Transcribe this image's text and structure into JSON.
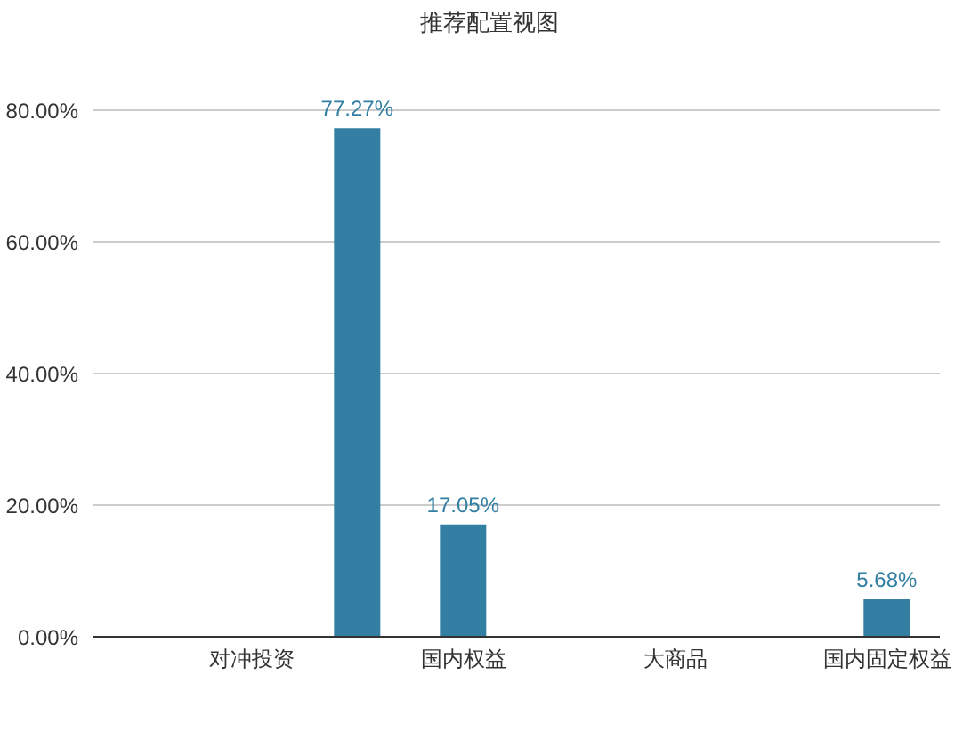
{
  "chart_data": {
    "type": "bar",
    "title": "推荐配置视图",
    "categories": [
      null,
      "对冲投资",
      null,
      "国内权益",
      null,
      "大商品",
      null,
      "国内固定权益"
    ],
    "values": [
      null,
      null,
      77.27,
      17.05,
      null,
      null,
      null,
      5.68
    ],
    "value_labels": [
      null,
      null,
      "77.27%",
      "17.05%",
      null,
      null,
      null,
      "5.68%"
    ],
    "color": "#337fa3",
    "ylim": [
      0,
      80
    ],
    "yticks": [
      {
        "value": 0,
        "label": "0.00%"
      },
      {
        "value": 20,
        "label": "20.00%"
      },
      {
        "value": 40,
        "label": "40.00%"
      },
      {
        "value": 60,
        "label": "60.00%"
      },
      {
        "value": 80,
        "label": "80.00%"
      }
    ],
    "grid": "y"
  }
}
